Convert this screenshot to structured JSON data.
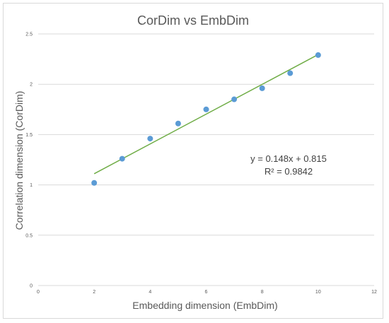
{
  "chart_data": {
    "type": "scatter",
    "title": "CorDim vs EmbDim",
    "xlabel": "Embedding dimension (EmbDim)",
    "ylabel": "Correlation dimension (CorDim)",
    "xlim": [
      0,
      12
    ],
    "ylim": [
      0,
      2.5
    ],
    "xticks": [
      "0",
      "2",
      "4",
      "6",
      "8",
      "10",
      "12"
    ],
    "yticks": [
      "0",
      "0.5",
      "1",
      "1.5",
      "2",
      "2.5"
    ],
    "grid": true,
    "legend": "none",
    "points": [
      {
        "x": 2,
        "y": 1.02
      },
      {
        "x": 3,
        "y": 1.26
      },
      {
        "x": 4,
        "y": 1.46
      },
      {
        "x": 5,
        "y": 1.61
      },
      {
        "x": 6,
        "y": 1.75
      },
      {
        "x": 7,
        "y": 1.85
      },
      {
        "x": 8,
        "y": 1.96
      },
      {
        "x": 9,
        "y": 2.11
      },
      {
        "x": 10,
        "y": 2.29
      }
    ],
    "trendline": {
      "type": "linear",
      "slope": 0.148,
      "intercept": 0.815,
      "x_range": [
        2,
        10
      ],
      "equation": "y = 0.148x + 0.815",
      "r_squared": "R² = 0.9842"
    },
    "colors": {
      "points": "#5b9bd5",
      "trendline": "#70ad47",
      "grid": "#d9d9d9",
      "text": "#595959"
    }
  }
}
